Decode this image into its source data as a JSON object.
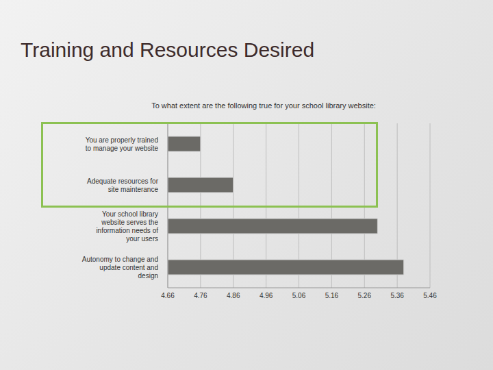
{
  "slide": {
    "title": "Training and Resources Desired"
  },
  "chart_data": {
    "type": "bar",
    "title": "To what extent are the following true for your school library website:",
    "orientation": "horizontal",
    "categories": [
      "You are properly trained to manage your website",
      "Adequate resources for site mainterance",
      "Your school library website serves the information needs of your users",
      "Autonomy to change and update content and design"
    ],
    "values": [
      4.76,
      4.86,
      5.3,
      5.38
    ],
    "color": "#6b6a66",
    "xlim": [
      4.66,
      5.46
    ],
    "xticks": [
      4.66,
      4.76,
      4.86,
      4.96,
      5.06,
      5.16,
      5.26,
      5.36,
      5.46
    ],
    "grid": true
  }
}
